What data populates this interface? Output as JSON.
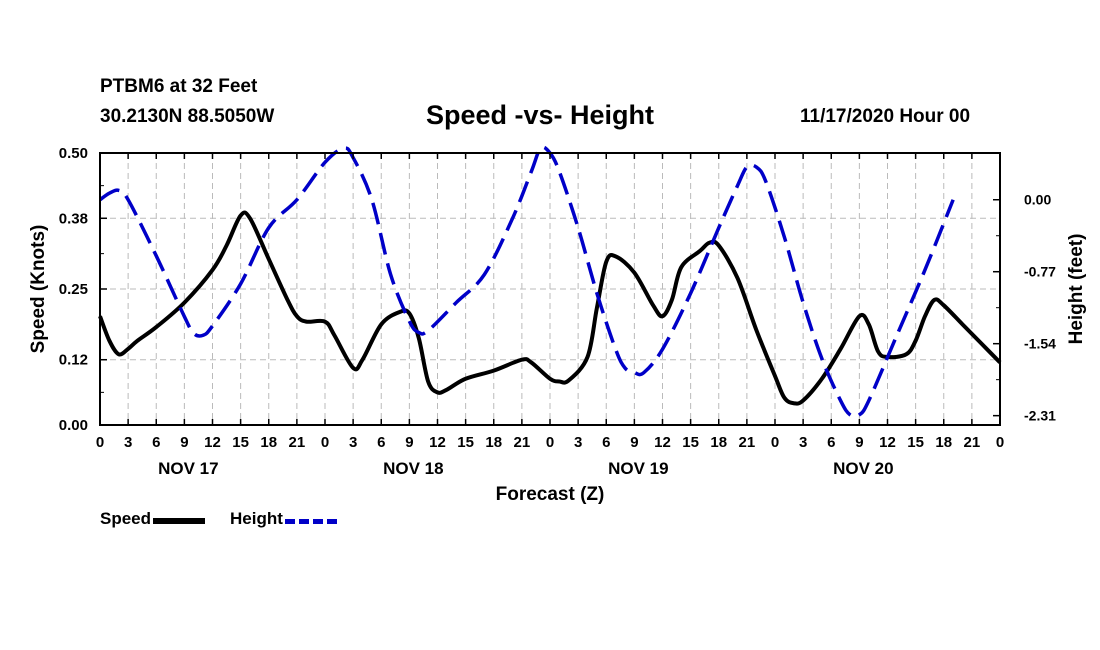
{
  "header": {
    "station": "PTBM6 at 32 Feet",
    "coords": "30.2130N 88.5050W",
    "title": "Speed -vs- Height",
    "stamp": "11/17/2020 Hour 00"
  },
  "legend": {
    "speed": "Speed",
    "height": "Height"
  },
  "colors": {
    "speed": "#000000",
    "height": "#0000c8",
    "grid": "#bbbbbb"
  },
  "chart_data": {
    "type": "line",
    "title": "Speed -vs- Height",
    "xlabel": "Forecast (Z)",
    "ylabel_left": "Speed (Knots)",
    "ylabel_right": "Height (feet)",
    "x_range_hours": [
      0,
      96
    ],
    "x_tick_labels": [
      "0",
      "3",
      "6",
      "9",
      "12",
      "15",
      "18",
      "21",
      "0",
      "3",
      "6",
      "9",
      "12",
      "15",
      "18",
      "21",
      "0",
      "3",
      "6",
      "9",
      "12",
      "15",
      "18",
      "21",
      "0",
      "3",
      "6",
      "9",
      "12",
      "15",
      "18",
      "21",
      "0"
    ],
    "day_labels": [
      {
        "label": "NOV 17",
        "hour": 9
      },
      {
        "label": "NOV 18",
        "hour": 33
      },
      {
        "label": "NOV 19",
        "hour": 57
      },
      {
        "label": "NOV 20",
        "hour": 81
      }
    ],
    "left_axis": {
      "range": [
        0,
        0.5
      ],
      "ticks": [
        "0.00",
        "0.12",
        "0.25",
        "0.38",
        "0.50"
      ]
    },
    "right_axis": {
      "range": [
        -2.41,
        0.5
      ],
      "ticks": [
        "0.00",
        "-0.77",
        "-1.54",
        "-2.31"
      ]
    },
    "series": [
      {
        "name": "Speed",
        "axis": "left",
        "style": "solid",
        "points": [
          [
            0,
            0.2
          ],
          [
            1,
            0.155
          ],
          [
            2,
            0.13
          ],
          [
            3,
            0.14
          ],
          [
            4,
            0.155
          ],
          [
            6,
            0.18
          ],
          [
            9,
            0.225
          ],
          [
            12,
            0.285
          ],
          [
            13.5,
            0.33
          ],
          [
            15,
            0.385
          ],
          [
            16,
            0.38
          ],
          [
            18,
            0.305
          ],
          [
            20,
            0.23
          ],
          [
            21,
            0.2
          ],
          [
            22,
            0.19
          ],
          [
            24,
            0.19
          ],
          [
            25,
            0.165
          ],
          [
            27,
            0.105
          ],
          [
            28,
            0.12
          ],
          [
            30,
            0.185
          ],
          [
            32,
            0.208
          ],
          [
            33,
            0.205
          ],
          [
            34,
            0.16
          ],
          [
            35,
            0.08
          ],
          [
            36,
            0.06
          ],
          [
            37,
            0.065
          ],
          [
            39,
            0.085
          ],
          [
            42,
            0.1
          ],
          [
            45,
            0.12
          ],
          [
            46,
            0.115
          ],
          [
            48,
            0.085
          ],
          [
            49,
            0.08
          ],
          [
            50,
            0.082
          ],
          [
            52,
            0.125
          ],
          [
            53,
            0.215
          ],
          [
            54,
            0.3
          ],
          [
            55,
            0.31
          ],
          [
            57,
            0.28
          ],
          [
            59,
            0.22
          ],
          [
            60,
            0.2
          ],
          [
            61,
            0.23
          ],
          [
            62,
            0.29
          ],
          [
            64,
            0.32
          ],
          [
            65,
            0.335
          ],
          [
            66,
            0.33
          ],
          [
            68,
            0.27
          ],
          [
            70,
            0.175
          ],
          [
            72,
            0.09
          ],
          [
            73,
            0.05
          ],
          [
            74,
            0.04
          ],
          [
            75,
            0.045
          ],
          [
            77,
            0.085
          ],
          [
            79,
            0.14
          ],
          [
            81,
            0.2
          ],
          [
            82,
            0.185
          ],
          [
            83,
            0.135
          ],
          [
            84,
            0.125
          ],
          [
            86,
            0.13
          ],
          [
            87,
            0.155
          ],
          [
            88,
            0.2
          ],
          [
            89,
            0.23
          ],
          [
            90,
            0.22
          ],
          [
            92,
            0.185
          ],
          [
            94,
            0.15
          ],
          [
            96,
            0.115
          ]
        ]
      },
      {
        "name": "Height",
        "axis": "right",
        "style": "dashed",
        "points": [
          [
            0,
            0.0
          ],
          [
            1,
            0.07
          ],
          [
            2,
            0.1
          ],
          [
            3,
            0.0
          ],
          [
            6,
            -0.6
          ],
          [
            9,
            -1.25
          ],
          [
            10,
            -1.43
          ],
          [
            11,
            -1.45
          ],
          [
            12,
            -1.35
          ],
          [
            15,
            -0.9
          ],
          [
            18,
            -0.3
          ],
          [
            21,
            0.0
          ],
          [
            24,
            0.4
          ],
          [
            26,
            0.55
          ],
          [
            27,
            0.45
          ],
          [
            29,
            0.0
          ],
          [
            31,
            -0.8
          ],
          [
            33,
            -1.3
          ],
          [
            34,
            -1.42
          ],
          [
            35,
            -1.4
          ],
          [
            38,
            -1.1
          ],
          [
            41,
            -0.8
          ],
          [
            44,
            -0.2
          ],
          [
            46,
            0.3
          ],
          [
            47,
            0.55
          ],
          [
            48,
            0.5
          ],
          [
            49,
            0.3
          ],
          [
            51,
            -0.3
          ],
          [
            53,
            -1.0
          ],
          [
            55,
            -1.6
          ],
          [
            56,
            -1.8
          ],
          [
            57,
            -1.85
          ],
          [
            58,
            -1.85
          ],
          [
            60,
            -1.6
          ],
          [
            63,
            -1.0
          ],
          [
            66,
            -0.3
          ],
          [
            68,
            0.15
          ],
          [
            69,
            0.35
          ],
          [
            70,
            0.35
          ],
          [
            71,
            0.2
          ],
          [
            73,
            -0.4
          ],
          [
            75,
            -1.1
          ],
          [
            77,
            -1.7
          ],
          [
            79,
            -2.15
          ],
          [
            80,
            -2.3
          ],
          [
            81,
            -2.3
          ],
          [
            82,
            -2.15
          ],
          [
            85,
            -1.45
          ],
          [
            88,
            -0.75
          ],
          [
            91,
            0.0
          ]
        ]
      }
    ]
  }
}
